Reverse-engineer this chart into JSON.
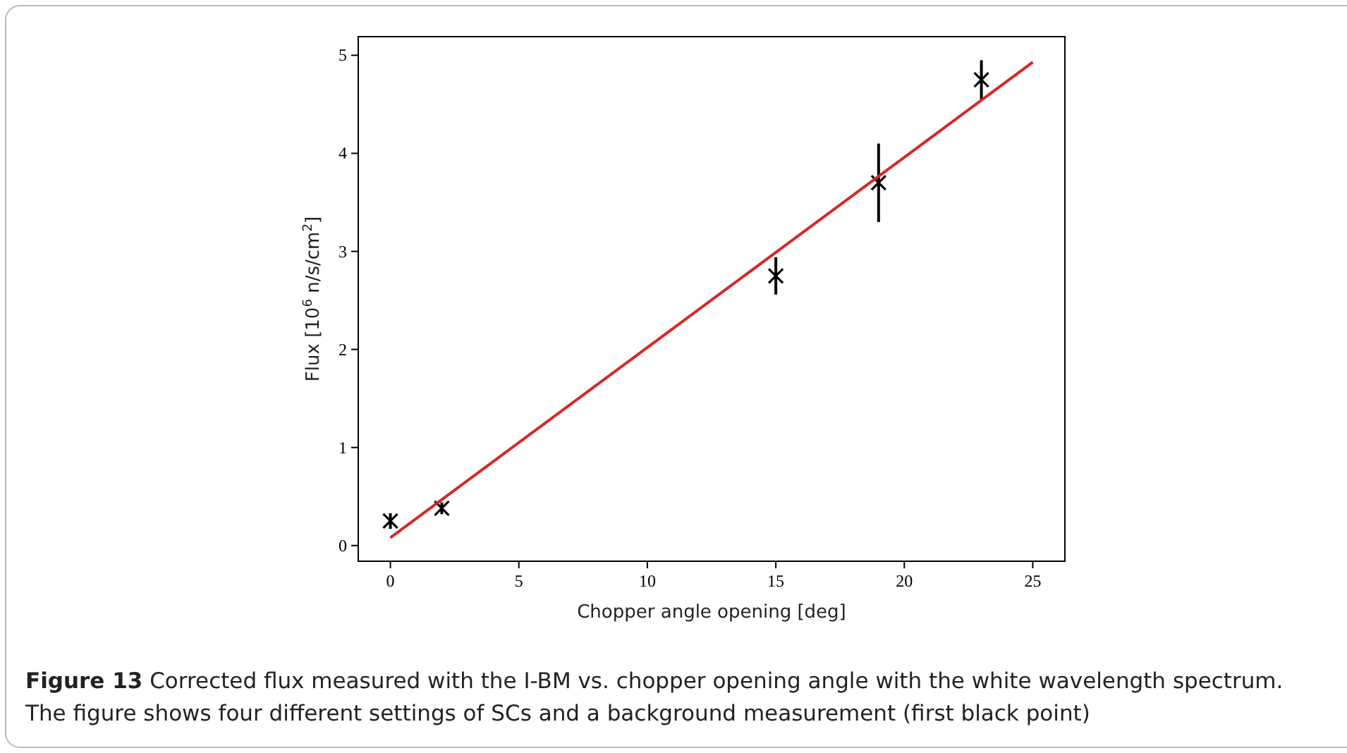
{
  "chart_data": {
    "type": "scatter",
    "xlabel": "Chopper angle opening [deg]",
    "ylabel": "Flux [10$^{6}$ n/s/cm$^{2}$]",
    "xlim": [
      -1.25,
      26.25
    ],
    "xticks": [
      0,
      5,
      10,
      15,
      20,
      25
    ],
    "ylim": [
      -0.16,
      5.19
    ],
    "yticks": [
      0,
      1,
      2,
      3,
      4,
      5
    ],
    "grid": false,
    "series": [
      {
        "marker": "cross",
        "color": "#000000",
        "x": [
          0,
          2,
          15,
          19,
          23
        ],
        "values": [
          0.25,
          0.38,
          2.75,
          3.7,
          4.75
        ],
        "errors": [
          0.08,
          0.06,
          0.19,
          0.4,
          0.2
        ]
      },
      {
        "type": "line",
        "color": "#d62728",
        "x": [
          0,
          25
        ],
        "values": [
          0.08,
          4.93
        ],
        "line_style": "solid"
      }
    ],
    "annotations": [
      "Figure 13",
      "Corrected flux measured with the I-BM vs. chopper opening angle with the white wavelength spectrum. The figure shows four different settings of SCs and a background measurement (first black point)"
    ]
  }
}
